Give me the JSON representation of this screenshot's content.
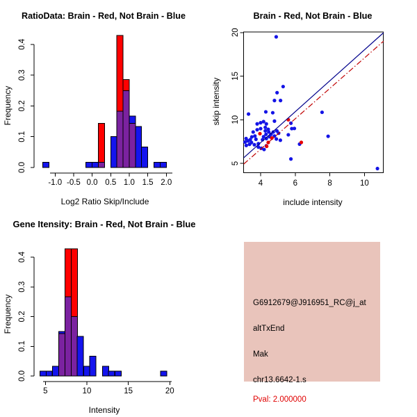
{
  "figure": {
    "background": "#ffffff",
    "colors": {
      "hist_blue": "#1414ee",
      "hist_red": "#ff0000",
      "hist_overlap_purple": "#7b22a0",
      "scatter_blue_point": "#1414e6",
      "scatter_red_point": "#e60000",
      "fit_line_blue": "#00008b",
      "fit_line_red": "#c00000",
      "axis_black": "#000000",
      "info_bg": "#e9c4bb",
      "pval_red": "#e00000"
    }
  },
  "chart_data": [
    {
      "id": "ratio_hist",
      "type": "bar",
      "subtype": "overlaid-histogram",
      "title": "RatioData: Brain - Red, Not Brain - Blue",
      "xlabel": "Log2 Ratio Skip/Include",
      "ylabel": "Frequency",
      "xticks": [
        -1.0,
        -0.5,
        0.0,
        0.5,
        1.0,
        1.5,
        2.0
      ],
      "xtick_labels": [
        "-1.0",
        "-0.5",
        "0.0",
        "0.5",
        "1.0",
        "1.5",
        "2.0"
      ],
      "yticks": [
        0.0,
        0.1,
        0.2,
        0.3,
        0.4
      ],
      "ytick_labels": [
        "0.0",
        "0.1",
        "0.2",
        "0.3",
        "0.4"
      ],
      "xlim": [
        -1.45,
        2.1
      ],
      "ylim": [
        0,
        0.43
      ],
      "grid": false,
      "legend": "encoded in title: Brain = red, Not Brain = blue",
      "bin_width": 0.1667,
      "series": [
        {
          "name": "Brain",
          "color_key": "hist_red"
        },
        {
          "name": "Not Brain",
          "color_key": "hist_blue"
        }
      ],
      "bars": [
        {
          "x0": -1.3333,
          "blue": 0.0167,
          "red": 0
        },
        {
          "x0": -0.1667,
          "blue": 0.0167,
          "red": 0
        },
        {
          "x0": 0.0,
          "blue": 0.0167,
          "red": 0
        },
        {
          "x0": 0.1667,
          "blue": 0.0167,
          "red": 0.1429
        },
        {
          "x0": 0.5,
          "blue": 0.1,
          "red": 0
        },
        {
          "x0": 0.6667,
          "blue": 0.1833,
          "red": 0.4286
        },
        {
          "x0": 0.8333,
          "blue": 0.25,
          "red": 0.2857
        },
        {
          "x0": 1.0,
          "blue": 0.1667,
          "red": 0.1429
        },
        {
          "x0": 1.1667,
          "blue": 0.1333,
          "red": 0
        },
        {
          "x0": 1.3333,
          "blue": 0.0667,
          "red": 0
        },
        {
          "x0": 1.6667,
          "blue": 0.0167,
          "red": 0
        },
        {
          "x0": 1.8333,
          "blue": 0.0167,
          "red": 0
        }
      ]
    },
    {
      "id": "intensity_scatter",
      "type": "scatter",
      "title": "Brain - Red, Not Brain - Blue",
      "xlabel": "include intensity",
      "ylabel": "skip intensity",
      "xticks": [
        4,
        6,
        8,
        10
      ],
      "xtick_labels": [
        "4",
        "6",
        "8",
        "10"
      ],
      "yticks": [
        5,
        10,
        15,
        20
      ],
      "ytick_labels": [
        "5",
        "10",
        "15",
        "20"
      ],
      "xlim": [
        3.0,
        11.1
      ],
      "ylim": [
        3.9,
        20.3
      ],
      "grid": false,
      "box": true,
      "series": [
        {
          "name": "Not Brain",
          "color_key": "scatter_blue_point",
          "points": [
            [
              3.1,
              7.44
            ],
            [
              3.16,
              7.84
            ],
            [
              3.17,
              7.05
            ],
            [
              3.27,
              7.57
            ],
            [
              3.3,
              10.65
            ],
            [
              3.36,
              7.18
            ],
            [
              3.4,
              7.71
            ],
            [
              3.47,
              7.39
            ],
            [
              3.49,
              8.03
            ],
            [
              3.57,
              8.59
            ],
            [
              3.64,
              7.13
            ],
            [
              3.67,
              8.13
            ],
            [
              3.73,
              7.76
            ],
            [
              3.8,
              8.85
            ],
            [
              3.8,
              9.52
            ],
            [
              3.87,
              7.25
            ],
            [
              3.87,
              6.86
            ],
            [
              4.0,
              9.65
            ],
            [
              4.0,
              8.98
            ],
            [
              4.04,
              6.73
            ],
            [
              4.11,
              7.71
            ],
            [
              4.17,
              9.78
            ],
            [
              4.17,
              8.05
            ],
            [
              4.2,
              6.59
            ],
            [
              4.27,
              9.12
            ],
            [
              4.27,
              8.72
            ],
            [
              4.3,
              10.9
            ],
            [
              4.31,
              8.32
            ],
            [
              4.33,
              9.52
            ],
            [
              4.33,
              7.84
            ],
            [
              4.33,
              7.0
            ],
            [
              4.44,
              8.9
            ],
            [
              4.47,
              8.59
            ],
            [
              4.51,
              8.05
            ],
            [
              4.6,
              8.32
            ],
            [
              4.7,
              10.8
            ],
            [
              4.73,
              8.59
            ],
            [
              4.8,
              9.84
            ],
            [
              4.8,
              8.13
            ],
            [
              4.8,
              12.2
            ],
            [
              4.9,
              19.5
            ],
            [
              4.91,
              7.79
            ],
            [
              4.94,
              8.72
            ],
            [
              4.95,
              13.1
            ],
            [
              5.04,
              8.45
            ],
            [
              5.14,
              7.65
            ],
            [
              5.15,
              12.2
            ],
            [
              5.3,
              13.8
            ],
            [
              5.6,
              8.27
            ],
            [
              5.75,
              9.6
            ],
            [
              5.8,
              8.98
            ],
            [
              5.95,
              9.0
            ],
            [
              6.25,
              7.2
            ],
            [
              5.75,
              5.5
            ],
            [
              7.55,
              10.85
            ],
            [
              7.9,
              8.1
            ],
            [
              10.75,
              4.4
            ]
          ]
        },
        {
          "name": "Brain",
          "color_key": "scatter_red_point",
          "points": [
            [
              3.96,
              8.4
            ],
            [
              4.44,
              7.39
            ],
            [
              4.65,
              7.9
            ],
            [
              4.35,
              6.95
            ],
            [
              5.6,
              10.0
            ],
            [
              6.35,
              7.4
            ]
          ]
        }
      ],
      "lines": [
        {
          "name": "not-brain-fit",
          "color_key": "fit_line_blue",
          "style": "solid",
          "from": [
            3.02,
            5.63
          ],
          "to": [
            11.1,
            19.97
          ]
        },
        {
          "name": "brain-fit",
          "color_key": "fit_line_red",
          "style": "dashdot",
          "from": [
            3.02,
            4.91
          ],
          "to": [
            11.1,
            19.0
          ]
        }
      ]
    },
    {
      "id": "gene_hist",
      "type": "bar",
      "subtype": "overlaid-histogram",
      "title": "Gene Itensity: Brain - Red, Not Brain - Blue",
      "xlabel": "Intensity",
      "ylabel": "Frequency",
      "xticks": [
        5,
        10,
        15,
        20
      ],
      "xtick_labels": [
        "5",
        "10",
        "15",
        "20"
      ],
      "yticks": [
        0.0,
        0.1,
        0.2,
        0.3,
        0.4
      ],
      "ytick_labels": [
        "0.0",
        "0.1",
        "0.2",
        "0.3",
        "0.4"
      ],
      "xlim": [
        4.3,
        20.3
      ],
      "ylim": [
        0,
        0.43
      ],
      "grid": false,
      "legend": "encoded in title: Brain = red, Not Brain = blue",
      "bin_width": 0.7537,
      "series": [
        {
          "name": "Brain",
          "color_key": "hist_red"
        },
        {
          "name": "Not Brain",
          "color_key": "hist_blue"
        }
      ],
      "bars": [
        {
          "x0": 4.33,
          "blue": 0.0167,
          "red": 0
        },
        {
          "x0": 5.08,
          "blue": 0.0167,
          "red": 0
        },
        {
          "x0": 5.84,
          "blue": 0.0333,
          "red": 0
        },
        {
          "x0": 6.59,
          "blue": 0.15,
          "red": 0.1429
        },
        {
          "x0": 7.35,
          "blue": 0.2667,
          "red": 0.4286
        },
        {
          "x0": 8.1,
          "blue": 0.2,
          "red": 0.4286
        },
        {
          "x0": 8.85,
          "blue": 0.1333,
          "red": 0
        },
        {
          "x0": 9.61,
          "blue": 0.0333,
          "red": 0
        },
        {
          "x0": 10.36,
          "blue": 0.0667,
          "red": 0
        },
        {
          "x0": 11.87,
          "blue": 0.0333,
          "red": 0
        },
        {
          "x0": 12.62,
          "blue": 0.0167,
          "red": 0
        },
        {
          "x0": 13.38,
          "blue": 0.0167,
          "red": 0
        },
        {
          "x0": 18.91,
          "blue": 0.0167,
          "red": 0
        }
      ]
    }
  ],
  "info_panel": {
    "bg_color": "#e9c4bb",
    "probe_id": "G6912679@J916951_RC@j_at",
    "splice_event_type": "altTxEnd",
    "gene_name": "Mak",
    "location": "chr13.6642-1.s",
    "pval_text": "Pval: 2.000000",
    "pval_color": "#e00000"
  }
}
